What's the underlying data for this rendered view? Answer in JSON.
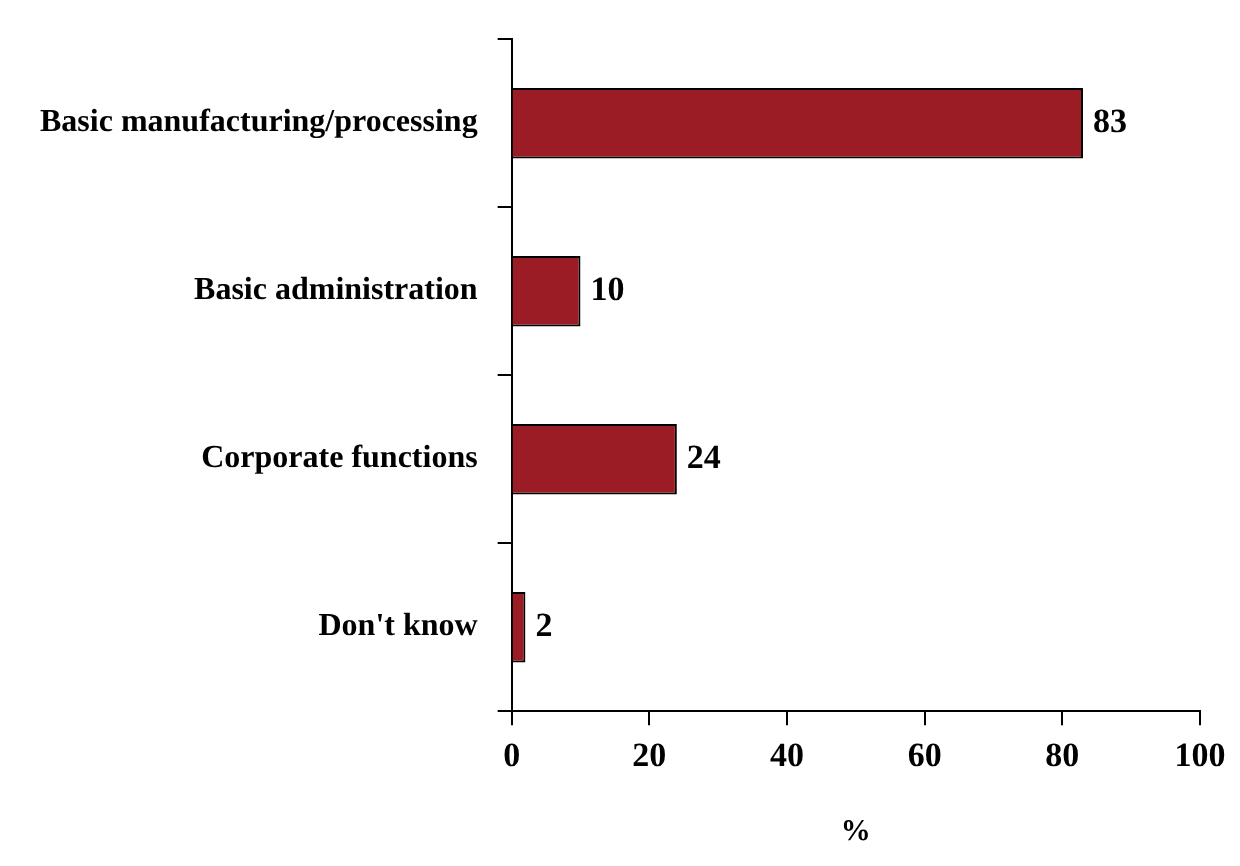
{
  "chart_data": {
    "type": "bar",
    "orientation": "horizontal",
    "xlabel": "%",
    "categories": [
      "Basic manufacturing/processing",
      "Basic administration",
      "Corporate functions",
      "Don't know"
    ],
    "values": [
      83,
      10,
      24,
      2
    ],
    "color": "#9b1c24",
    "xlim": [
      0,
      100
    ],
    "xticks": [
      0,
      20,
      40,
      60,
      80,
      100
    ],
    "grid": false,
    "legend": false,
    "data_labels": true
  }
}
